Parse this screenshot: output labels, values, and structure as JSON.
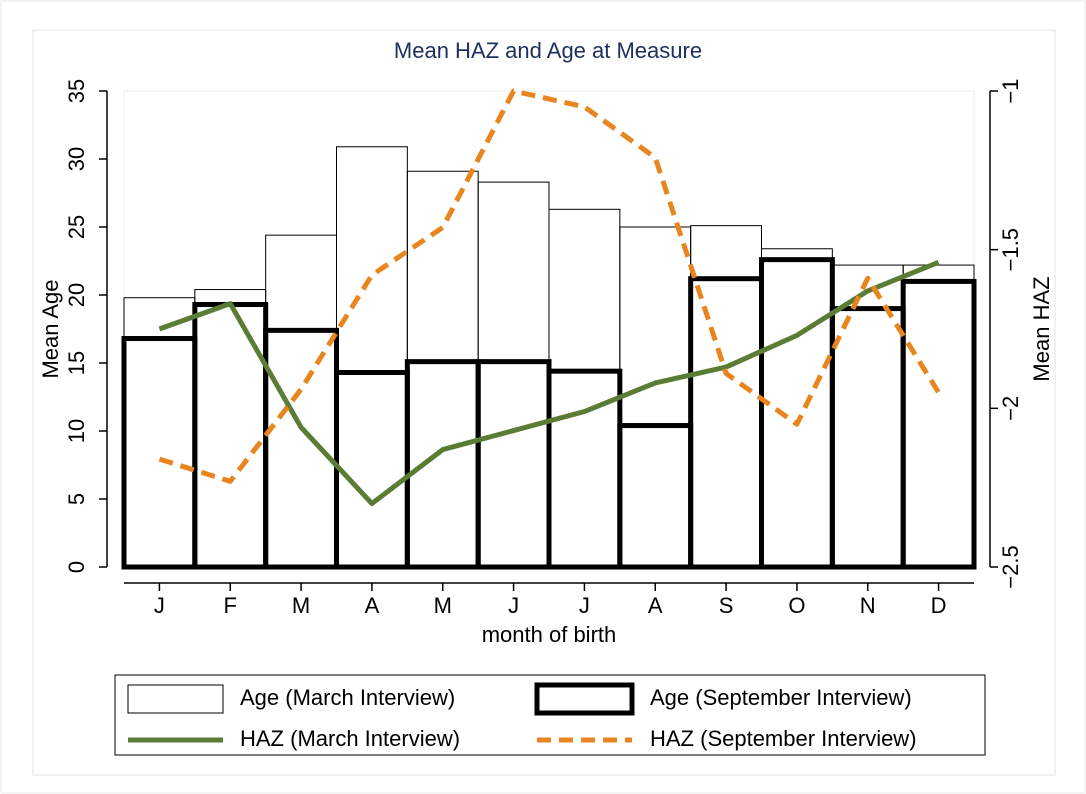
{
  "chart_data": {
    "type": "combo",
    "title": "Mean HAZ and Age at Measure",
    "x_label": "month of birth",
    "y_label": "Mean Age",
    "y2_label": "Mean HAZ",
    "categories": [
      "J",
      "F",
      "M",
      "A",
      "M",
      "J",
      "J",
      "A",
      "S",
      "O",
      "N",
      "D"
    ],
    "ylim": [
      0,
      35
    ],
    "yticks": [
      0,
      5,
      10,
      15,
      20,
      25,
      30,
      35
    ],
    "y2lim": [
      -2.5,
      -1
    ],
    "y2ticks": [
      {
        "value": -2.5,
        "label": "−2.5"
      },
      {
        "value": -2,
        "label": "−2"
      },
      {
        "value": -1.5,
        "label": "−1.5"
      },
      {
        "value": -1,
        "label": "−1"
      }
    ],
    "series": [
      {
        "name": "Age (March Interview)",
        "type": "bar",
        "style": "outline-thin",
        "color": "#000000",
        "values": [
          19.8,
          20.4,
          24.4,
          30.9,
          29.1,
          28.3,
          26.3,
          25.0,
          25.1,
          23.4,
          22.2,
          22.2
        ]
      },
      {
        "name": "Age (September Interview)",
        "type": "bar",
        "style": "outline-thick",
        "color": "#000000",
        "values": [
          16.8,
          19.3,
          17.4,
          14.3,
          15.1,
          15.1,
          14.4,
          10.4,
          21.2,
          22.6,
          19.0,
          21.0
        ]
      },
      {
        "name": "HAZ (March Interview)",
        "type": "line",
        "style": "solid",
        "axis": "y2",
        "color": "#5b7c35",
        "values": [
          -1.75,
          -1.67,
          -2.06,
          -2.3,
          -2.13,
          -2.07,
          -2.01,
          -1.92,
          -1.87,
          -1.77,
          -1.63,
          -1.54
        ]
      },
      {
        "name": "HAZ (September Interview)",
        "type": "line",
        "style": "dashed",
        "axis": "y2",
        "color": "#e8851f",
        "values": [
          -2.16,
          -2.23,
          -1.94,
          -1.58,
          -1.43,
          -1.0,
          -1.05,
          -1.21,
          -1.89,
          -2.05,
          -1.59,
          -1.95
        ]
      }
    ]
  }
}
